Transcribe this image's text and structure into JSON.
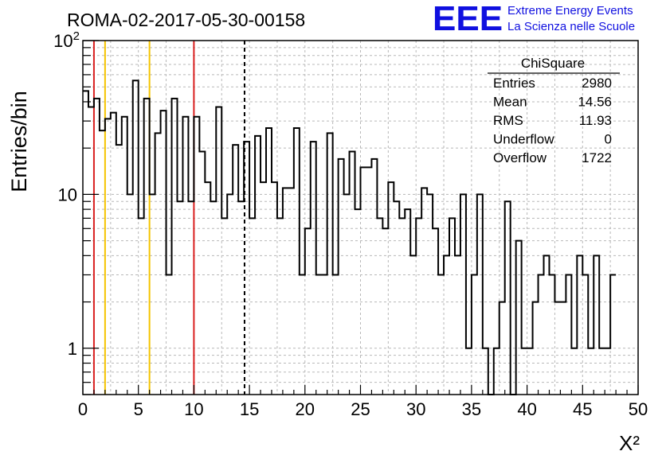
{
  "chart_data": {
    "type": "bar",
    "title": "ROMA-02-2017-05-30-00158",
    "xlabel": "X²",
    "ylabel": "Entries/bin",
    "xlim": [
      0,
      50
    ],
    "ylim": [
      0.5,
      100
    ],
    "yscale": "log",
    "grid": true,
    "bin_width": 0.5,
    "xticks": [
      "0",
      "5",
      "10",
      "15",
      "20",
      "25",
      "30",
      "35",
      "40",
      "45",
      "50"
    ],
    "yticks": [
      {
        "value": 1,
        "label": "1"
      },
      {
        "value": 10,
        "label": "10"
      },
      {
        "value": 100,
        "label": "10",
        "sup": "2"
      }
    ],
    "values": [
      47,
      37,
      42,
      26,
      31,
      34,
      21,
      32,
      10,
      55,
      7,
      42,
      10,
      25,
      35,
      3,
      42,
      9,
      32,
      9,
      32,
      19,
      12,
      9,
      37,
      7,
      10,
      21,
      9,
      22,
      7,
      24,
      12,
      27,
      12,
      7,
      11,
      11,
      27,
      3,
      6,
      22,
      3,
      3,
      25,
      3,
      17,
      10,
      19,
      8,
      15,
      15,
      17,
      7,
      6,
      12,
      9,
      7,
      8,
      4,
      7,
      11,
      10,
      6,
      3,
      4,
      7,
      4,
      10,
      1,
      3,
      10,
      1,
      0.5,
      1,
      2,
      9,
      0.5,
      5,
      1,
      1,
      2,
      3,
      4,
      3,
      2,
      2,
      3,
      1,
      4,
      3,
      1,
      4,
      1,
      1,
      3
    ],
    "vlines": [
      {
        "x": 1,
        "color": "#d92020",
        "style": "solid"
      },
      {
        "x": 2,
        "color": "#f5c400",
        "style": "solid"
      },
      {
        "x": 6,
        "color": "#f5c400",
        "style": "solid"
      },
      {
        "x": 10,
        "color": "#d92020",
        "style": "solid"
      },
      {
        "x": 14.56,
        "color": "#000000",
        "style": "dashed"
      }
    ],
    "stats": {
      "title": "ChiSquare",
      "rows": [
        {
          "label": "Entries",
          "value": "2980"
        },
        {
          "label": "Mean",
          "value": "14.56"
        },
        {
          "label": "RMS",
          "value": "11.93"
        },
        {
          "label": "Underflow",
          "value": "0"
        },
        {
          "label": "Overflow",
          "value": "1722"
        }
      ]
    },
    "logo": {
      "text": "EEE",
      "line1": "Extreme Energy Events",
      "line2": "La Scienza nelle Scuole",
      "color": "#1010e0"
    }
  }
}
